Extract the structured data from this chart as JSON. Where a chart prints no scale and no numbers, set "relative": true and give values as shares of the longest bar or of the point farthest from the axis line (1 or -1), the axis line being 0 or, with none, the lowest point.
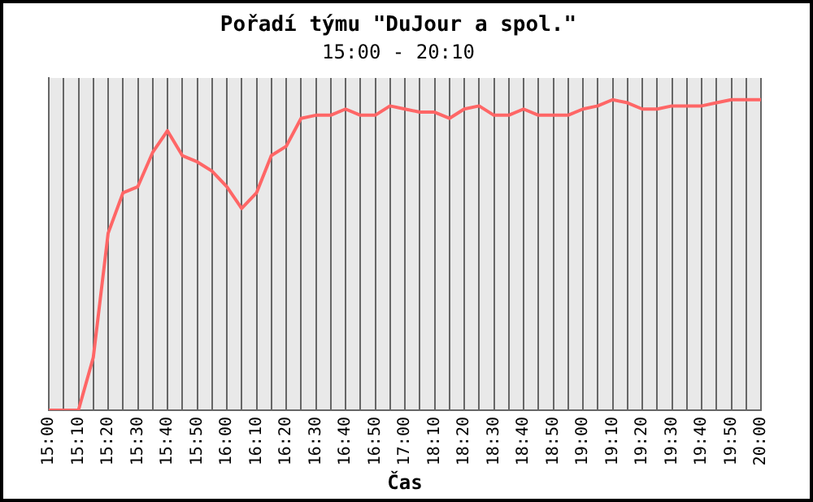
{
  "chart_data": {
    "type": "line",
    "title": "Pořadí týmu \"DuJour a spol.\"",
    "subtitle": "15:00 - 20:10",
    "xlabel": "Čas",
    "categories": [
      "15:00",
      null,
      "15:10",
      null,
      "15:20",
      null,
      "15:30",
      null,
      "15:40",
      null,
      "15:50",
      null,
      "16:00",
      null,
      "16:10",
      null,
      "16:20",
      null,
      "16:30",
      null,
      "16:40",
      null,
      "16:50",
      null,
      "17:00",
      null,
      "18:10",
      null,
      "18:20",
      null,
      "18:30",
      null,
      "18:40",
      null,
      "18:50",
      null,
      "19:00",
      null,
      "19:10",
      null,
      "19:20",
      null,
      "19:30",
      null,
      "19:40",
      null,
      "19:50",
      null,
      "20:00"
    ],
    "relative": true,
    "series": [
      {
        "color": "#ff6666",
        "values": [
          0,
          0,
          0,
          0.17,
          0.57,
          0.7,
          0.72,
          0.83,
          0.9,
          0.82,
          0.8,
          0.77,
          0.72,
          0.65,
          0.7,
          0.82,
          0.85,
          0.94,
          0.95,
          0.95,
          0.97,
          0.95,
          0.95,
          0.98,
          0.97,
          0.96,
          0.96,
          0.94,
          0.97,
          0.98,
          0.95,
          0.95,
          0.97,
          0.95,
          0.95,
          0.95,
          0.97,
          0.98,
          1,
          0.99,
          0.97,
          0.97,
          0.98,
          0.98,
          0.98,
          0.99,
          1,
          1,
          1
        ]
      }
    ],
    "grid": "x",
    "legend": false,
    "marker": "none",
    "line_style": "solid"
  }
}
